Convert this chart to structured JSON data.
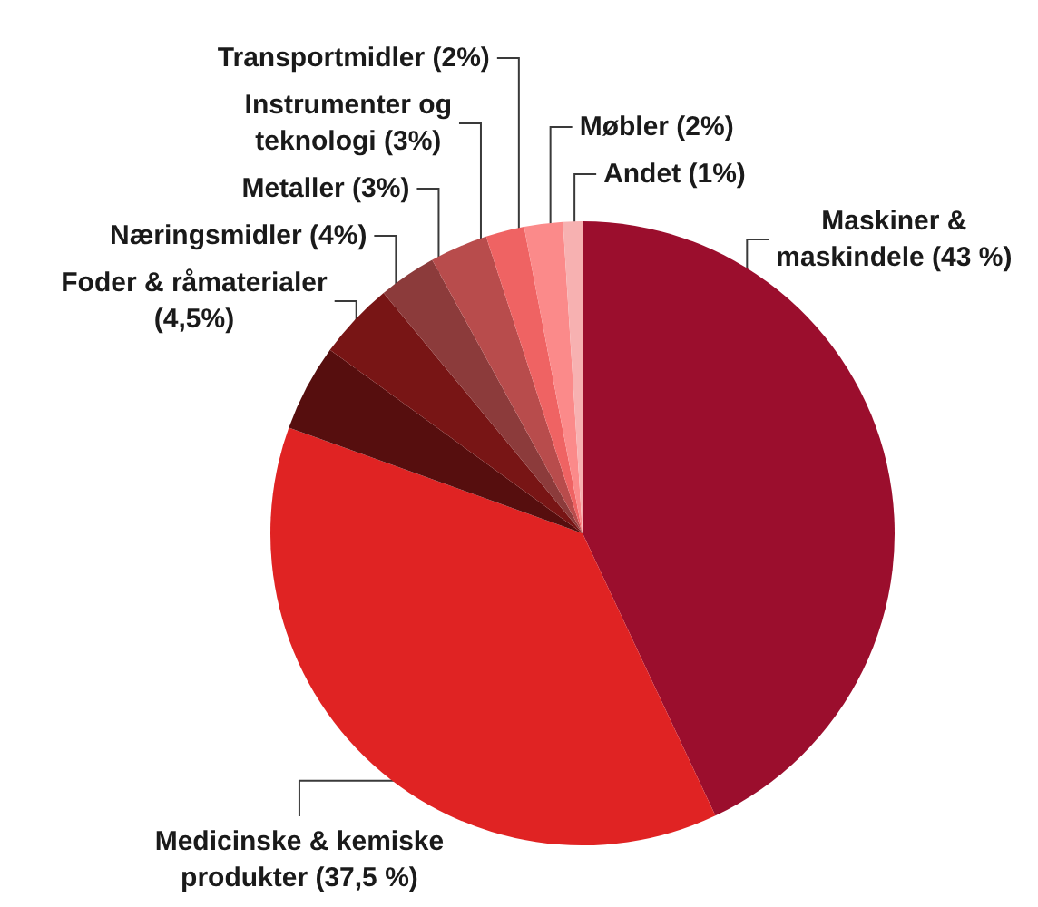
{
  "chart_data": {
    "type": "pie",
    "categories": [
      "Maskiner & maskindele",
      "Medicinske & kemiske produkter",
      "Foder & råmaterialer",
      "Næringsmidler",
      "Metaller",
      "Instrumenter og teknologi",
      "Transportmidler",
      "Møbler",
      "Andet"
    ],
    "values": [
      43,
      37.5,
      4.5,
      4,
      3,
      3,
      2,
      2,
      1
    ],
    "value_labels": [
      "(43 %)",
      "(37,5 %)",
      "(4,5%)",
      "(4%)",
      "(3%)",
      "(3%)",
      "(2%)",
      "(2%)",
      "(1%)"
    ],
    "colors": [
      "#9b0e2d",
      "#e02323",
      "#560e0e",
      "#781515",
      "#8c3b3b",
      "#b84c4c",
      "#ef6363",
      "#fb8a8a",
      "#f7b1b1"
    ]
  }
}
